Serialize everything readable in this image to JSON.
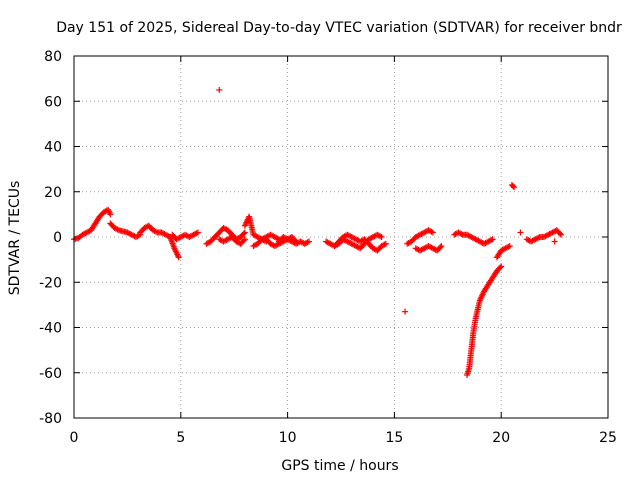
{
  "chart_data": {
    "type": "scatter",
    "title": "Day 151 of 2025, Sidereal Day-to-day VTEC variation (SDTVAR) for receiver bndr",
    "xlabel": "GPS time / hours",
    "ylabel": "SDTVAR / TECUs",
    "xlim": [
      0,
      25
    ],
    "ylim": [
      -80,
      80
    ],
    "xticks": [
      0,
      5,
      10,
      15,
      20,
      25
    ],
    "yticks": [
      -80,
      -60,
      -40,
      -20,
      0,
      20,
      40,
      60,
      80
    ],
    "grid": true,
    "marker": "+",
    "color": "#ff0000",
    "segments": [
      {
        "x": [
          0.0,
          0.2,
          0.4,
          0.6,
          0.8,
          1.0,
          1.2,
          1.4,
          1.6,
          1.7
        ],
        "y": [
          -1,
          -0.5,
          1,
          2,
          3,
          6,
          9,
          11,
          12,
          10
        ]
      },
      {
        "x": [
          1.7,
          1.9,
          2.1,
          2.3,
          2.5,
          2.7,
          2.9,
          3.1
        ],
        "y": [
          6,
          4,
          3,
          2.5,
          2,
          1,
          0,
          1
        ]
      },
      {
        "x": [
          3.1,
          3.3,
          3.5,
          3.7,
          3.9,
          4.1,
          4.3,
          4.5,
          4.7,
          4.9
        ],
        "y": [
          2,
          4,
          5,
          3,
          2,
          2,
          1,
          0,
          -5,
          -9
        ]
      },
      {
        "x": [
          4.6,
          4.8,
          5.0,
          5.2,
          5.4,
          5.6,
          5.8
        ],
        "y": [
          1,
          -1,
          0,
          1,
          0,
          1,
          2
        ]
      },
      {
        "x": [
          6.2,
          6.4,
          6.6,
          6.8,
          7.0,
          7.2,
          7.4,
          7.6,
          7.8,
          8.0
        ],
        "y": [
          -3,
          -2,
          0,
          2,
          4,
          3,
          1,
          -1,
          0,
          2
        ]
      },
      {
        "x": [
          6.8,
          7.0,
          7.2,
          7.4,
          7.6,
          7.8,
          8.0
        ],
        "y": [
          -1,
          -2,
          -1,
          0,
          -2,
          -3,
          -1
        ]
      },
      {
        "x": [
          8.0,
          8.2,
          8.4,
          8.6,
          8.8,
          9.0
        ],
        "y": [
          5,
          9,
          1,
          0,
          -1,
          -2
        ]
      },
      {
        "x": [
          8.4,
          8.6,
          8.8,
          9.0,
          9.2,
          9.4,
          9.6
        ],
        "y": [
          -4,
          -3,
          -1,
          0,
          1,
          0,
          -1
        ]
      },
      {
        "x": [
          9.0,
          9.2,
          9.4,
          9.6,
          9.8,
          10.0,
          10.2,
          10.4,
          10.6,
          10.8,
          11.0
        ],
        "y": [
          -1,
          -3,
          -4,
          -3,
          -2,
          -1,
          -2,
          -3,
          -2,
          -3,
          -2
        ]
      },
      {
        "x": [
          9.6,
          9.8,
          10.0,
          10.2,
          10.4
        ],
        "y": [
          -2,
          0,
          -1,
          0,
          -2
        ]
      },
      {
        "x": [
          11.8,
          12.0,
          12.2,
          12.4,
          12.6,
          12.8,
          13.0,
          13.2,
          13.4,
          13.6,
          13.8,
          14.0,
          14.2,
          14.4,
          14.6
        ],
        "y": [
          -2,
          -3,
          -4,
          -2,
          0,
          1,
          0,
          -1,
          -2,
          -1,
          -3,
          -5,
          -6,
          -4,
          -3
        ]
      },
      {
        "x": [
          12.2,
          12.4,
          12.6,
          12.8,
          13.0,
          13.2,
          13.4,
          13.6,
          13.8,
          14.0,
          14.2,
          14.4
        ],
        "y": [
          -4,
          -3,
          -1,
          -2,
          -3,
          -4,
          -5,
          -3,
          -1,
          0,
          1,
          0
        ]
      },
      {
        "x": [
          15.6,
          15.8,
          16.0,
          16.2,
          16.4,
          16.6,
          16.8
        ],
        "y": [
          -3,
          -2,
          0,
          1,
          2,
          3,
          2
        ]
      },
      {
        "x": [
          16.0,
          16.2,
          16.4,
          16.6,
          16.8,
          17.0,
          17.2
        ],
        "y": [
          -5,
          -6,
          -5,
          -4,
          -5,
          -6,
          -4
        ]
      },
      {
        "x": [
          17.8,
          18.0,
          18.2,
          18.4,
          18.6,
          18.8,
          19.0,
          19.2,
          19.4,
          19.6
        ],
        "y": [
          1,
          2,
          1,
          1,
          0,
          -1,
          -2,
          -3,
          -2,
          -1
        ]
      },
      {
        "x": [
          18.4,
          18.5,
          18.6,
          18.7,
          18.8,
          18.9,
          19.0,
          19.2,
          19.4,
          19.6,
          19.8,
          20.0
        ],
        "y": [
          -61,
          -58,
          -50,
          -42,
          -36,
          -32,
          -28,
          -24,
          -21,
          -18,
          -15,
          -13
        ]
      },
      {
        "x": [
          19.8,
          20.0,
          20.2,
          20.4
        ],
        "y": [
          -9,
          -6,
          -5,
          -4
        ]
      },
      {
        "x": [
          21.2,
          21.4,
          21.6,
          21.8,
          22.0,
          22.2,
          22.4,
          22.6,
          22.8
        ],
        "y": [
          -1,
          -2,
          -1,
          0,
          0,
          1,
          2,
          3,
          1
        ]
      },
      {
        "x": [
          20.5,
          20.6
        ],
        "y": [
          23,
          22
        ]
      },
      {
        "x": [
          6.8
        ],
        "y": [
          65
        ]
      },
      {
        "x": [
          15.5
        ],
        "y": [
          -33
        ]
      },
      {
        "x": [
          20.9
        ],
        "y": [
          2
        ]
      },
      {
        "x": [
          22.5
        ],
        "y": [
          -2
        ]
      }
    ]
  }
}
